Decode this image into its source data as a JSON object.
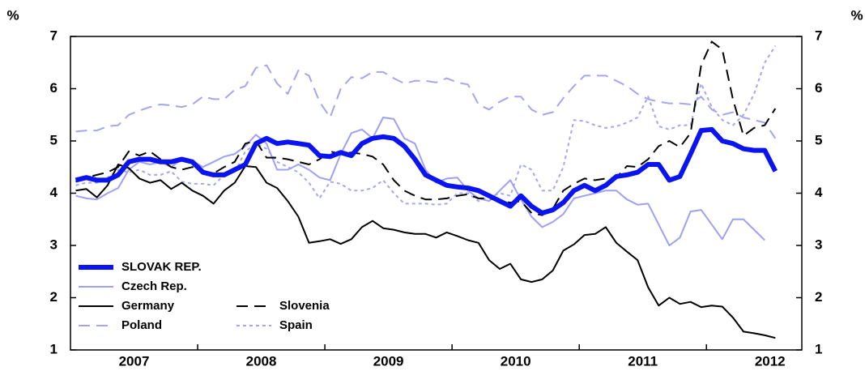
{
  "chart_data": {
    "type": "line",
    "y_unit": "%",
    "categories": [
      null,
      null,
      null,
      null,
      null,
      "2007",
      null,
      null,
      null,
      null,
      null,
      null,
      null,
      null,
      null,
      null,
      null,
      "2008",
      null,
      null,
      null,
      null,
      null,
      null,
      null,
      null,
      null,
      null,
      null,
      "2009",
      null,
      null,
      null,
      null,
      null,
      null,
      null,
      null,
      null,
      null,
      null,
      "2010",
      null,
      null,
      null,
      null,
      null,
      null,
      null,
      null,
      null,
      null,
      null,
      "2011",
      null,
      null,
      null,
      null,
      null,
      null,
      null,
      null,
      null,
      null,
      null,
      "2012",
      null,
      null,
      null
    ],
    "ylim": [
      1,
      7
    ],
    "yticks": [
      1,
      2,
      3,
      4,
      5,
      6,
      7
    ],
    "legend": "lower left",
    "series": [
      {
        "name": "SLOVAK REP.",
        "color": "#0a14f0",
        "dash": "solid",
        "width": 6,
        "values": [
          4.25,
          4.3,
          4.25,
          4.25,
          4.35,
          4.6,
          4.65,
          4.65,
          4.6,
          4.6,
          4.65,
          4.6,
          4.4,
          4.35,
          4.35,
          4.45,
          4.55,
          4.95,
          5.05,
          4.95,
          4.98,
          4.95,
          4.92,
          4.72,
          4.7,
          4.78,
          4.72,
          4.95,
          5.05,
          5.08,
          5.05,
          4.9,
          4.65,
          4.35,
          4.25,
          4.15,
          4.12,
          4.1,
          4.05,
          3.95,
          3.85,
          3.75,
          3.95,
          3.75,
          3.62,
          3.68,
          3.82,
          4.05,
          4.15,
          4.05,
          4.15,
          4.32,
          4.35,
          4.4,
          4.55,
          4.55,
          4.25,
          4.32,
          4.75,
          5.2,
          5.22,
          5.0,
          4.95,
          4.85,
          4.82,
          4.82,
          4.42,
          null,
          null
        ]
      },
      {
        "name": "Czech Rep.",
        "color": "#9f9ff5",
        "dash": "solid",
        "width": 2,
        "values": [
          3.95,
          3.9,
          3.88,
          4.0,
          4.1,
          4.45,
          4.6,
          4.55,
          4.6,
          4.5,
          4.65,
          4.62,
          4.5,
          4.6,
          4.7,
          4.75,
          4.9,
          5.12,
          4.95,
          4.45,
          4.45,
          4.55,
          4.45,
          4.3,
          4.25,
          4.75,
          5.15,
          5.22,
          5.05,
          5.45,
          5.42,
          5.05,
          4.95,
          4.45,
          4.2,
          4.28,
          4.3,
          4.05,
          3.9,
          3.85,
          4.05,
          4.25,
          3.88,
          3.55,
          3.35,
          3.45,
          3.6,
          3.9,
          3.95,
          4.0,
          4.05,
          4.05,
          3.88,
          3.78,
          3.8,
          3.4,
          3.0,
          3.15,
          3.65,
          3.68,
          3.4,
          3.12,
          3.5,
          3.5,
          3.3,
          3.1,
          null,
          null,
          null
        ]
      },
      {
        "name": "Germany",
        "color": "#000000",
        "dash": "solid",
        "width": 2,
        "values": [
          4.05,
          4.08,
          3.92,
          4.15,
          4.55,
          4.48,
          4.28,
          4.2,
          4.25,
          4.08,
          4.2,
          4.05,
          3.95,
          3.8,
          4.05,
          4.2,
          4.52,
          4.5,
          4.2,
          4.1,
          3.85,
          3.55,
          3.05,
          3.08,
          3.12,
          3.03,
          3.12,
          3.35,
          3.47,
          3.33,
          3.3,
          3.25,
          3.22,
          3.22,
          3.15,
          3.25,
          3.18,
          3.1,
          3.05,
          2.72,
          2.55,
          2.65,
          2.35,
          2.3,
          2.35,
          2.52,
          2.9,
          3.02,
          3.2,
          3.22,
          3.35,
          3.05,
          2.88,
          2.72,
          2.2,
          1.85,
          2.0,
          1.88,
          1.92,
          1.82,
          1.85,
          1.83,
          1.62,
          1.35,
          1.32,
          1.28,
          1.23,
          null,
          null
        ]
      },
      {
        "name": "Poland",
        "color": "#a5a5f0",
        "dash": "dashed",
        "width": 2,
        "values": [
          5.18,
          5.2,
          5.2,
          5.28,
          5.3,
          5.5,
          5.58,
          5.65,
          5.7,
          5.68,
          5.65,
          5.7,
          5.85,
          5.8,
          5.8,
          5.98,
          6.05,
          6.4,
          6.45,
          6.1,
          5.9,
          6.35,
          6.25,
          5.75,
          5.45,
          6.0,
          6.22,
          6.2,
          6.32,
          6.32,
          6.2,
          6.1,
          6.15,
          6.15,
          6.12,
          6.2,
          6.12,
          6.08,
          5.7,
          5.6,
          5.75,
          5.85,
          5.85,
          5.6,
          5.5,
          5.55,
          5.82,
          6.05,
          6.25,
          6.25,
          6.25,
          6.15,
          6.05,
          5.9,
          5.8,
          5.75,
          5.72,
          5.72,
          5.7,
          5.85,
          5.6,
          5.5,
          5.55,
          5.45,
          5.4,
          5.35,
          5.05,
          null,
          null
        ]
      },
      {
        "name": "Slovenia",
        "color": "#000000",
        "dash": "dashed",
        "width": 2,
        "values": [
          4.22,
          4.3,
          4.35,
          4.4,
          4.5,
          4.8,
          4.72,
          4.8,
          4.65,
          4.5,
          4.45,
          4.5,
          4.4,
          4.38,
          4.5,
          4.6,
          4.95,
          5.0,
          4.68,
          4.68,
          4.65,
          4.6,
          4.55,
          4.65,
          4.8,
          4.75,
          4.78,
          4.75,
          4.7,
          4.55,
          4.25,
          4.05,
          3.95,
          3.88,
          3.88,
          3.9,
          3.95,
          3.98,
          3.9,
          3.9,
          3.85,
          3.82,
          3.85,
          3.62,
          3.58,
          3.7,
          4.05,
          4.18,
          4.28,
          4.25,
          4.28,
          4.3,
          4.52,
          4.5,
          4.65,
          4.9,
          5.0,
          4.88,
          5.15,
          6.45,
          6.9,
          6.75,
          5.8,
          5.1,
          5.25,
          5.3,
          5.62,
          null,
          null
        ]
      },
      {
        "name": "Spain",
        "color": "#a5a5f0",
        "dash": "dotted",
        "width": 2,
        "values": [
          4.15,
          4.2,
          4.2,
          4.3,
          4.45,
          4.4,
          4.45,
          4.35,
          4.35,
          4.42,
          4.22,
          4.18,
          4.18,
          4.15,
          4.35,
          4.4,
          4.8,
          4.95,
          4.85,
          4.6,
          4.5,
          4.4,
          4.2,
          3.9,
          4.22,
          4.18,
          4.05,
          4.05,
          4.1,
          4.25,
          4.0,
          3.8,
          3.8,
          3.8,
          3.78,
          3.8,
          4.0,
          4.0,
          3.85,
          3.92,
          4.0,
          3.95,
          4.55,
          4.45,
          4.05,
          4.05,
          4.5,
          5.4,
          5.38,
          5.3,
          5.25,
          5.28,
          5.35,
          5.45,
          5.85,
          5.28,
          5.22,
          5.3,
          5.3,
          6.1,
          5.65,
          5.4,
          5.3,
          5.5,
          5.9,
          6.5,
          6.82,
          null,
          null
        ]
      }
    ]
  }
}
